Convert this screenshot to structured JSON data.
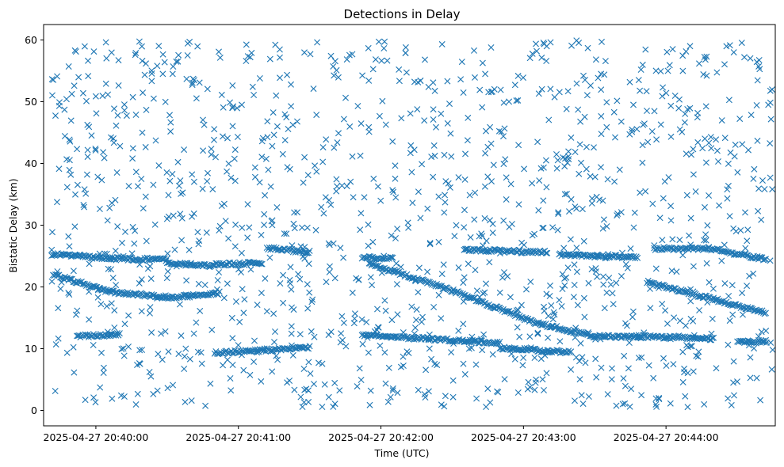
{
  "chart_data": {
    "type": "scatter",
    "title": "Detections in Delay",
    "xlabel": "Time (UTC)",
    "ylabel": "Bistatic Delay (km)",
    "marker": "x",
    "color": "#1f77b4",
    "grid": false,
    "legend": "none",
    "xlim": [
      "2025-04-27 20:39:38",
      "2025-04-27 20:44:46"
    ],
    "ylim": [
      -2.5,
      62.5
    ],
    "x_ticks": [
      "2025-04-27 20:40:00",
      "2025-04-27 20:41:00",
      "2025-04-27 20:42:00",
      "2025-04-27 20:43:00",
      "2025-04-27 20:44:00"
    ],
    "y_ticks": [
      0,
      10,
      20,
      30,
      40,
      50,
      60
    ],
    "tracks": [
      {
        "x_start": "2025-04-27 20:39:42",
        "x_end": "2025-04-27 20:40:06",
        "y_start": 22.0,
        "y_end": 19.2
      },
      {
        "x_start": "2025-04-27 20:40:06",
        "x_end": "2025-04-27 20:40:32",
        "y_start": 19.2,
        "y_end": 18.3
      },
      {
        "x_start": "2025-04-27 20:40:32",
        "x_end": "2025-04-27 20:40:52",
        "y_start": 18.3,
        "y_end": 19.0
      },
      {
        "x_start": "2025-04-27 20:41:55",
        "x_end": "2025-04-27 20:42:30",
        "y_start": 23.8,
        "y_end": 19.4
      },
      {
        "x_start": "2025-04-27 20:42:30",
        "x_end": "2025-04-27 20:43:05",
        "y_start": 19.4,
        "y_end": 14.2
      },
      {
        "x_start": "2025-04-27 20:43:05",
        "x_end": "2025-04-27 20:43:30",
        "y_start": 14.2,
        "y_end": 12.0
      },
      {
        "x_start": "2025-04-27 20:43:30",
        "x_end": "2025-04-27 20:43:50",
        "y_start": 12.0,
        "y_end": 11.9
      },
      {
        "x_start": "2025-04-27 20:43:52",
        "x_end": "2025-04-27 20:44:42",
        "y_start": 20.8,
        "y_end": 15.8
      },
      {
        "x_start": "2025-04-27 20:39:42",
        "x_end": "2025-04-27 20:40:06",
        "y_start": 25.3,
        "y_end": 24.6
      },
      {
        "x_start": "2025-04-27 20:40:06",
        "x_end": "2025-04-27 20:40:30",
        "y_start": 24.6,
        "y_end": 24.4
      },
      {
        "x_start": "2025-04-27 20:40:30",
        "x_end": "2025-04-27 20:40:50",
        "y_start": 23.8,
        "y_end": 23.4
      },
      {
        "x_start": "2025-04-27 20:40:50",
        "x_end": "2025-04-27 20:41:10",
        "y_start": 23.6,
        "y_end": 23.9
      },
      {
        "x_start": "2025-04-27 20:41:12",
        "x_end": "2025-04-27 20:41:30",
        "y_start": 26.3,
        "y_end": 25.6
      },
      {
        "x_start": "2025-04-27 20:41:52",
        "x_end": "2025-04-27 20:42:05",
        "y_start": 24.8,
        "y_end": 24.6
      },
      {
        "x_start": "2025-04-27 20:42:35",
        "x_end": "2025-04-27 20:43:10",
        "y_start": 26.0,
        "y_end": 25.6
      },
      {
        "x_start": "2025-04-27 20:43:15",
        "x_end": "2025-04-27 20:43:48",
        "y_start": 25.2,
        "y_end": 24.8
      },
      {
        "x_start": "2025-04-27 20:43:55",
        "x_end": "2025-04-27 20:44:16",
        "y_start": 26.2,
        "y_end": 26.2
      },
      {
        "x_start": "2025-04-27 20:44:16",
        "x_end": "2025-04-27 20:44:42",
        "y_start": 26.3,
        "y_end": 24.5
      },
      {
        "x_start": "2025-04-27 20:39:52",
        "x_end": "2025-04-27 20:40:10",
        "y_start": 12.0,
        "y_end": 12.3
      },
      {
        "x_start": "2025-04-27 20:40:50",
        "x_end": "2025-04-27 20:41:30",
        "y_start": 9.3,
        "y_end": 10.2
      },
      {
        "x_start": "2025-04-27 20:41:52",
        "x_end": "2025-04-27 20:42:20",
        "y_start": 12.2,
        "y_end": 11.6
      },
      {
        "x_start": "2025-04-27 20:42:20",
        "x_end": "2025-04-27 20:42:50",
        "y_start": 11.6,
        "y_end": 10.9
      },
      {
        "x_start": "2025-04-27 20:42:50",
        "x_end": "2025-04-27 20:43:20",
        "y_start": 10.1,
        "y_end": 9.4
      },
      {
        "x_start": "2025-04-27 20:43:48",
        "x_end": "2025-04-27 20:44:20",
        "y_start": 12.0,
        "y_end": 11.6
      },
      {
        "x_start": "2025-04-27 20:44:30",
        "x_end": "2025-04-27 20:44:42",
        "y_start": 11.0,
        "y_end": 11.2
      }
    ]
  }
}
